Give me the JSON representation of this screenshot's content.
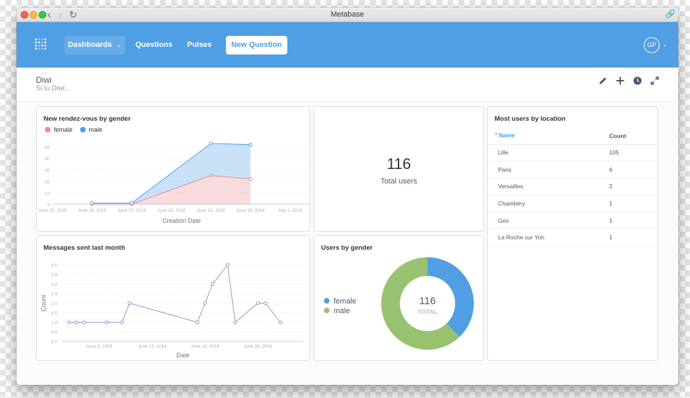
{
  "window": {
    "title": "Metabase"
  },
  "nav": {
    "dashboards_label": "Dashboards",
    "questions_label": "Questions",
    "pulses_label": "Pulses",
    "new_question_label": "New Question",
    "avatar_initials": "GP"
  },
  "dashboard": {
    "title": "Diwi",
    "description": "Si tu Diwi..."
  },
  "colors": {
    "brand": "#509ee3",
    "female": "#f0888f",
    "male": "#509ee3",
    "line_purple": "#a989c5",
    "pie_male": "#98c26f"
  },
  "cards": {
    "rdv": {
      "title": "New rendez-vous by gender"
    },
    "total": {
      "title": "",
      "value": "116",
      "label": "Total users"
    },
    "location": {
      "title": "Most users by location",
      "columns": [
        "Name",
        "Count"
      ],
      "rows": [
        {
          "name": "Lille",
          "count": "105"
        },
        {
          "name": "Paris",
          "count": "6"
        },
        {
          "name": "Versailles",
          "count": "2"
        },
        {
          "name": "Chambéry",
          "count": "1"
        },
        {
          "name": "Gex",
          "count": "1"
        },
        {
          "name": "La Roche sur Yon",
          "count": "1"
        }
      ]
    },
    "messages": {
      "title": "Messages sent last month"
    },
    "gender": {
      "title": "Users by gender",
      "total_label": "TOTAL"
    }
  },
  "chart_data": [
    {
      "type": "area",
      "title": "New rendez-vous by gender",
      "xlabel": "Creation Date",
      "ylabel": "",
      "ylim": [
        0,
        50
      ],
      "yticks": [
        0,
        10,
        20,
        30,
        40,
        50
      ],
      "x_ticks": [
        "June 25, 2016",
        "June 26, 2016",
        "June 27, 2016",
        "June 28, 2016",
        "June 29, 2016",
        "June 30, 2016",
        "July 1, 2016"
      ],
      "x": [
        "June 26, 2016",
        "June 27, 2016",
        "June 29, 2016",
        "June 30, 2016"
      ],
      "stacked": true,
      "legend": "top-left",
      "series": [
        {
          "name": "female",
          "color": "#f0888f",
          "values": [
            0,
            0,
            25,
            22
          ]
        },
        {
          "name": "male",
          "color": "#509ee3",
          "values": [
            1,
            1,
            28,
            30
          ]
        }
      ]
    },
    {
      "type": "line",
      "title": "Messages sent last month",
      "xlabel": "Date",
      "ylabel": "Count",
      "ylim": [
        0,
        4
      ],
      "yticks": [
        "0.0",
        "0.5",
        "1.0",
        "1.5",
        "2.0",
        "2.5",
        "3.0",
        "3.5",
        "4.0"
      ],
      "x_ticks": [
        "June 5, 2016",
        "June 12, 2016",
        "June 19, 2016",
        "June 26, 2016"
      ],
      "x_domain": [
        1,
        31
      ],
      "x_tick_days": [
        5,
        12,
        19,
        26
      ],
      "series": [
        {
          "name": "Count",
          "color": "#a989c5",
          "days": [
            1,
            2,
            3,
            6,
            8,
            9,
            18,
            19,
            20,
            22,
            23,
            26,
            27,
            29
          ],
          "values": [
            1,
            1,
            1,
            1,
            1,
            2,
            1,
            2,
            3,
            4,
            1,
            2,
            2,
            1
          ]
        }
      ]
    },
    {
      "type": "pie",
      "title": "Users by gender",
      "donut": true,
      "total": "116",
      "legend": "left",
      "slices": [
        {
          "name": "female",
          "value": 44,
          "color": "#509ee3"
        },
        {
          "name": "male",
          "value": 72,
          "color": "#98c26f"
        }
      ]
    }
  ]
}
